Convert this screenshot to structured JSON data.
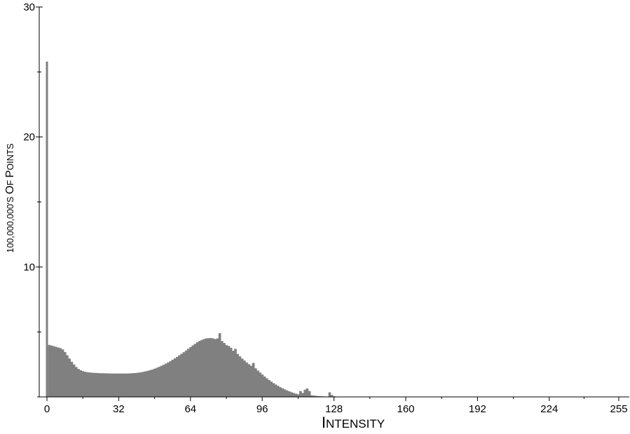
{
  "chart_data": {
    "type": "bar",
    "xlabel": "Intensity",
    "ylabel": "100,000,000's of Points",
    "xlim": [
      0,
      255
    ],
    "ylim": [
      0,
      30
    ],
    "x_ticks": [
      "0",
      "32",
      "64",
      "96",
      "128",
      "160",
      "192",
      "224",
      "255"
    ],
    "y_ticks": [
      "10",
      "20",
      "30"
    ],
    "grid": false,
    "bar_color": "#808080",
    "series": [
      {
        "x_start": 0,
        "values": [
          25.8,
          4.0,
          3.95,
          3.9,
          3.85,
          3.8,
          3.75,
          3.65,
          3.45,
          3.2,
          2.95,
          2.7,
          2.5,
          2.3,
          2.15,
          2.05,
          1.98,
          1.93,
          1.9,
          1.88,
          1.86,
          1.85,
          1.84,
          1.83,
          1.82,
          1.82,
          1.81,
          1.81,
          1.8,
          1.8,
          1.8,
          1.8,
          1.8,
          1.8,
          1.8,
          1.8,
          1.8,
          1.81,
          1.82,
          1.83,
          1.85,
          1.87,
          1.9,
          1.93,
          1.97,
          2.01,
          2.06,
          2.11,
          2.17,
          2.24,
          2.31,
          2.39,
          2.47,
          2.56,
          2.65,
          2.75,
          2.86,
          2.97,
          3.08,
          3.2,
          3.32,
          3.44,
          3.57,
          3.7,
          3.83,
          3.96,
          4.08,
          4.2,
          4.3,
          4.38,
          4.45,
          4.5,
          4.52,
          4.53,
          4.5,
          4.45,
          4.5,
          4.9,
          4.3,
          4.15,
          3.98,
          3.92,
          3.78,
          3.55,
          3.7,
          3.3,
          3.12,
          2.95,
          2.8,
          2.65,
          2.52,
          2.4,
          2.62,
          2.2,
          2.03,
          1.87,
          1.72,
          1.57,
          1.43,
          1.3,
          1.18,
          1.06,
          0.95,
          0.85,
          0.75,
          0.66,
          0.58,
          0.5,
          0.43,
          0.36,
          0.3,
          0.25,
          0.2,
          0.45,
          0.3,
          0.55,
          0.65,
          0.45,
          0.12,
          0.1,
          0.08,
          0.06,
          0.05,
          0.04,
          0.03,
          0.03,
          0.35,
          0.15,
          0.05,
          0.03,
          0.02,
          0.02,
          0.02,
          0.01,
          0.01,
          0.01,
          0.01,
          0.01,
          0.01,
          0.01,
          0.01,
          0.01,
          0.01,
          0.01,
          0.01,
          0.01,
          0.01,
          0.01,
          0.01,
          0.01,
          0.01,
          0.01,
          0.01,
          0.01,
          0.01,
          0.01,
          0.01,
          0.01,
          0.01
        ]
      }
    ]
  }
}
